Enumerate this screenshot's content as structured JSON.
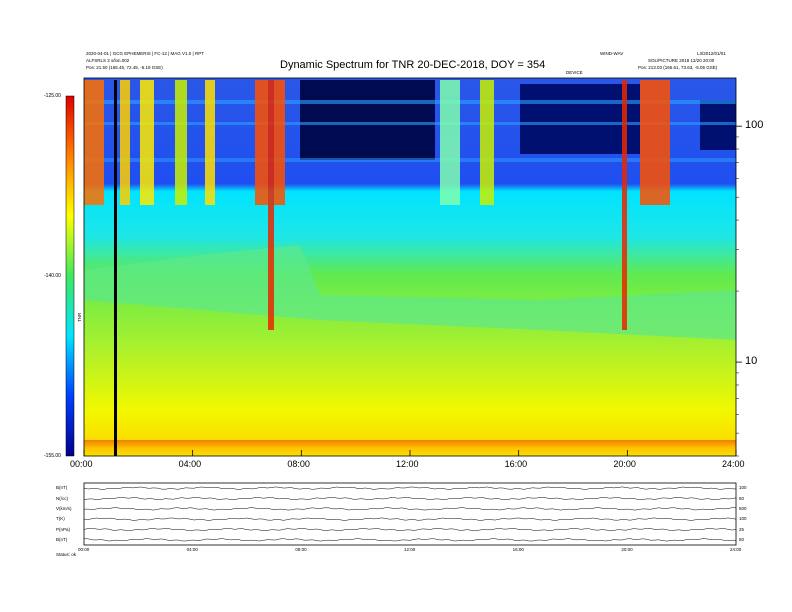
{
  "header": {
    "left_line1": "2020-04-01 | GCG EPHEMERIS | FC-12 | MAG V1.0 | RPT",
    "left_line2": "ALFSRLS 2 s/lon.002",
    "left_line3": "Pos:   21.50 (165.45, 72.45, -5.19 GSE)",
    "right_top_1": "WIND-WAV",
    "right_top_2": "L3/2012/01/01",
    "right_line2": "SOL/PICTURE 2018 12/20 20:00",
    "right_line3": "Pos:   213.03 (165.61, 73.63, -5.05 GSE)",
    "mid_label": "DEVICE"
  },
  "chart_data": {
    "type": "heatmap",
    "title": "Dynamic Spectrum for TNR 20-DEC-2018, DOY = 354",
    "x": {
      "ticks": [
        "00:00",
        "04:00",
        "08:00",
        "12:00",
        "16:00",
        "20:00",
        "24:00"
      ],
      "range_hours": [
        0,
        24
      ]
    },
    "y": {
      "scale": "log",
      "range": [
        4,
        160
      ],
      "ticks": [
        10,
        100
      ],
      "tick_labels": [
        "10",
        "100"
      ],
      "unit": "kHz"
    },
    "colorbar": {
      "range": [
        -155,
        -125
      ],
      "ticks": [
        -125,
        -140,
        -155
      ],
      "tick_labels": [
        "-125.00",
        "-140.00",
        "-155.00"
      ],
      "label": "TNR",
      "colors": [
        "#00008c",
        "#0040ff",
        "#00e4ff",
        "#3fe860",
        "#ffff00",
        "#ff8000",
        "#e00000"
      ]
    },
    "markers": [
      {
        "type": "vertical-line",
        "x": 1.2,
        "color": "#000000"
      }
    ],
    "panels": [
      {
        "label": "B(nT)"
      },
      {
        "label": "N(/cc)"
      },
      {
        "label": "V(km/s)"
      },
      {
        "label": "T(K)"
      },
      {
        "label": "P(nPa)"
      },
      {
        "label": "B(nT)"
      }
    ],
    "panel_right_labels": [
      "100",
      "50",
      "500",
      "100",
      "25",
      "50"
    ],
    "panel_x_ticks": [
      "00:00",
      "04:00",
      "08:00",
      "12:00",
      "16:00",
      "20:00",
      "24:00"
    ],
    "footer_left": "Status: ok"
  }
}
